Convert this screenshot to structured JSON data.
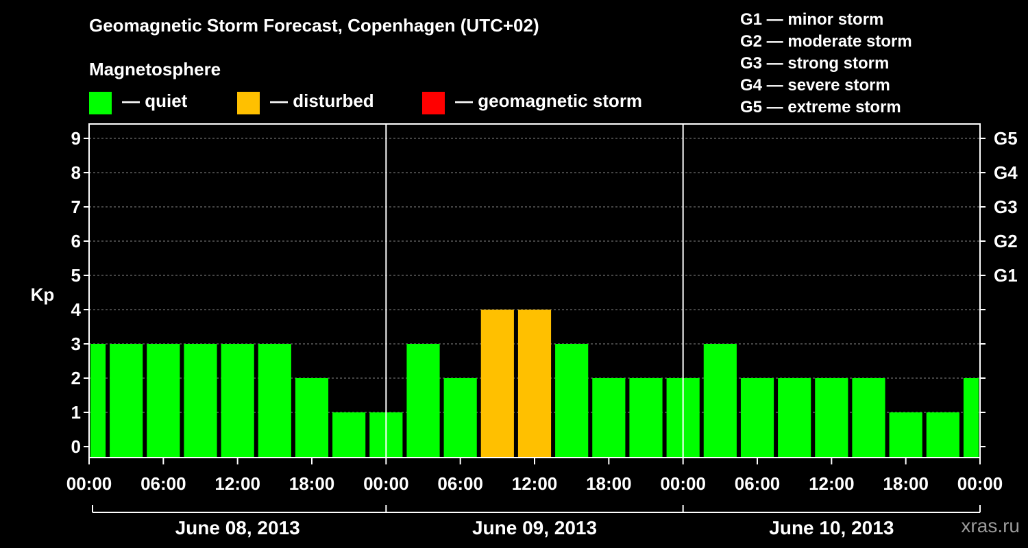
{
  "header": {
    "title": "Geomagnetic Storm Forecast, Copenhagen (UTC+02)",
    "legend_title": "Magnetosphere"
  },
  "legend": [
    {
      "label": "— quiet",
      "color": "#00ff00"
    },
    {
      "label": "— disturbed",
      "color": "#ffc000"
    },
    {
      "label": "— geomagnetic storm",
      "color": "#ff0000"
    }
  ],
  "storm_scale": [
    "G1 — minor storm",
    "G2 — moderate storm",
    "G3 — strong storm",
    "G4 — severe storm",
    "G5 — extreme storm"
  ],
  "watermark": "xras.ru",
  "chart_data": {
    "type": "bar",
    "title": "Geomagnetic Storm Forecast, Copenhagen (UTC+02)",
    "ylabel": "Kp",
    "ylim": [
      0,
      9
    ],
    "yticks": [
      "0",
      "1",
      "2",
      "3",
      "4",
      "5",
      "6",
      "7",
      "8",
      "9"
    ],
    "right_ticks": [
      {
        "kp": 5,
        "label": "G1"
      },
      {
        "kp": 6,
        "label": "G2"
      },
      {
        "kp": 7,
        "label": "G3"
      },
      {
        "kp": 8,
        "label": "G4"
      },
      {
        "kp": 9,
        "label": "G5"
      }
    ],
    "xticks": [
      "00:00",
      "06:00",
      "12:00",
      "18:00",
      "00:00",
      "06:00",
      "12:00",
      "18:00",
      "00:00",
      "06:00",
      "12:00",
      "18:00",
      "00:00",
      "06:00",
      "12:00",
      "18:00",
      "00:00"
    ],
    "days": [
      "June 08, 2013",
      "June 09, 2013",
      "June 10, 2013"
    ],
    "categories": [
      "Jun 08 00:00",
      "Jun 08 03:00",
      "Jun 08 06:00",
      "Jun 08 09:00",
      "Jun 08 12:00",
      "Jun 08 15:00",
      "Jun 08 18:00",
      "Jun 08 21:00",
      "Jun 09 00:00",
      "Jun 09 03:00",
      "Jun 09 06:00",
      "Jun 09 09:00",
      "Jun 09 12:00",
      "Jun 09 15:00",
      "Jun 09 18:00",
      "Jun 09 21:00",
      "Jun 10 00:00",
      "Jun 10 03:00",
      "Jun 10 06:00",
      "Jun 10 09:00",
      "Jun 10 12:00",
      "Jun 10 15:00",
      "Jun 10 18:00",
      "Jun 10 21:00",
      "Jun 11 00:00"
    ],
    "values": [
      3,
      3,
      3,
      3,
      3,
      3,
      2,
      1,
      1,
      3,
      2,
      4,
      4,
      3,
      2,
      2,
      2,
      3,
      2,
      2,
      2,
      2,
      1,
      1,
      2
    ],
    "status": [
      "quiet",
      "quiet",
      "quiet",
      "quiet",
      "quiet",
      "quiet",
      "quiet",
      "quiet",
      "quiet",
      "quiet",
      "quiet",
      "disturbed",
      "disturbed",
      "quiet",
      "quiet",
      "quiet",
      "quiet",
      "quiet",
      "quiet",
      "quiet",
      "quiet",
      "quiet",
      "quiet",
      "quiet",
      "quiet"
    ],
    "colors": {
      "quiet": "#00ff00",
      "disturbed": "#ffc000",
      "storm": "#ff0000"
    },
    "grid": true
  }
}
